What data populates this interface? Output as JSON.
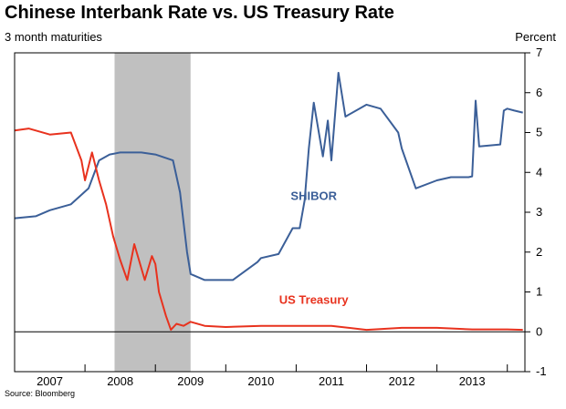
{
  "header": {
    "title": "Chinese Interbank Rate vs. US Treasury Rate",
    "subtitle": "3 month maturities",
    "y_unit": "Percent"
  },
  "footer": {
    "source": "Source:  Bloomberg"
  },
  "colors": {
    "shibor": "#3b5f98",
    "us_treasury": "#e8321e",
    "recession": "#c0c0c0",
    "axis": "#000000"
  },
  "chart_data": {
    "type": "line",
    "title": "Chinese Interbank Rate vs. US Treasury Rate",
    "subtitle": "3 month maturities",
    "ylabel": "Percent",
    "xlabel": "",
    "xlim": [
      2006.5,
      2013.75
    ],
    "ylim": [
      -1,
      7
    ],
    "y_ticks": [
      -1,
      0,
      1,
      2,
      3,
      4,
      5,
      6,
      7
    ],
    "x_ticks": [
      {
        "label": "2007",
        "pos": 2007.0
      },
      {
        "label": "2008",
        "pos": 2008.0
      },
      {
        "label": "2009",
        "pos": 2009.0
      },
      {
        "label": "2010",
        "pos": 2010.0
      },
      {
        "label": "2011",
        "pos": 2011.0
      },
      {
        "label": "2012",
        "pos": 2012.0
      },
      {
        "label": "2013",
        "pos": 2013.0
      }
    ],
    "x_dividers": [
      2007.5,
      2008.5,
      2009.5,
      2010.5,
      2011.5,
      2012.5,
      2013.5
    ],
    "shaded_range": [
      2007.92,
      2009.0
    ],
    "grid": false,
    "series": [
      {
        "key": "shibor",
        "name": "SHIBOR",
        "x": [
          2006.5,
          2006.8,
          2007.0,
          2007.3,
          2007.55,
          2007.7,
          2007.85,
          2008.0,
          2008.3,
          2008.5,
          2008.75,
          2008.85,
          2008.95,
          2009.0,
          2009.2,
          2009.6,
          2009.95,
          2010.0,
          2010.25,
          2010.45,
          2010.55,
          2010.62,
          2010.68,
          2010.75,
          2010.88,
          2010.95,
          2011.0,
          2011.1,
          2011.2,
          2011.5,
          2011.7,
          2011.95,
          2012.0,
          2012.2,
          2012.5,
          2012.7,
          2012.95,
          2013.0,
          2013.05,
          2013.1,
          2013.4,
          2013.45,
          2013.5,
          2013.6,
          2013.72
        ],
        "values": [
          2.85,
          2.9,
          3.05,
          3.2,
          3.6,
          4.3,
          4.45,
          4.5,
          4.5,
          4.45,
          4.3,
          3.5,
          2.0,
          1.45,
          1.3,
          1.3,
          1.75,
          1.85,
          1.95,
          2.6,
          2.6,
          3.3,
          4.6,
          5.75,
          4.4,
          5.3,
          4.3,
          6.5,
          5.4,
          5.7,
          5.6,
          5.0,
          4.6,
          3.6,
          3.8,
          3.88,
          3.88,
          3.9,
          5.8,
          4.65,
          4.7,
          5.55,
          5.6,
          5.55,
          5.5
        ]
      },
      {
        "key": "us_treasury",
        "name": "US Treasury",
        "x": [
          2006.5,
          2006.7,
          2007.0,
          2007.3,
          2007.45,
          2007.5,
          2007.6,
          2007.7,
          2007.8,
          2007.9,
          2008.0,
          2008.1,
          2008.2,
          2008.35,
          2008.45,
          2008.5,
          2008.55,
          2008.65,
          2008.72,
          2008.8,
          2008.9,
          2009.0,
          2009.2,
          2009.5,
          2010.0,
          2010.5,
          2011.0,
          2011.5,
          2012.0,
          2012.5,
          2013.0,
          2013.5,
          2013.72
        ],
        "values": [
          5.05,
          5.1,
          4.95,
          5.0,
          4.3,
          3.8,
          4.5,
          3.8,
          3.2,
          2.4,
          1.8,
          1.3,
          2.2,
          1.3,
          1.9,
          1.7,
          1.0,
          0.4,
          0.05,
          0.2,
          0.15,
          0.25,
          0.15,
          0.12,
          0.15,
          0.15,
          0.15,
          0.05,
          0.1,
          0.1,
          0.06,
          0.06,
          0.05
        ]
      }
    ],
    "annotations": [
      {
        "series": "shibor",
        "text": "SHIBOR",
        "x": 2010.75,
        "y": 3.4
      },
      {
        "series": "us_treasury",
        "text": "US Treasury",
        "x": 2010.75,
        "y": 0.8
      }
    ]
  }
}
